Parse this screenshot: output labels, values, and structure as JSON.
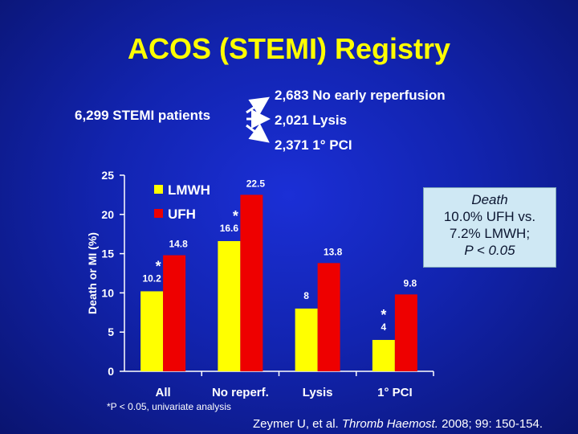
{
  "slide": {
    "title": "ACOS (STEMI) Registry",
    "patients": "6,299 STEMI patients",
    "outcomes": [
      "2,683 No early reperfusion",
      "2,021 Lysis",
      "2,371 1° PCI"
    ],
    "infobox": {
      "line1": "Death",
      "line2": "10.0% UFH vs.",
      "line3": "7.2% LMWH;",
      "line4": "P < 0.05"
    },
    "footnote": "*P < 0.05, univariate analysis",
    "citation_authors": "Zeymer U, et al. ",
    "citation_journal": "Thromb Haemost.",
    "citation_rest": " 2008; 99: 150-154."
  },
  "colors": {
    "background": "#1224b0",
    "title": "#ffff00",
    "lmwh": "#ffff00",
    "ufh": "#ee0000",
    "infobox": "#cfe8f4"
  },
  "chart_data": {
    "type": "bar",
    "categories": [
      "All",
      "No reperf.",
      "Lysis",
      "1° PCI"
    ],
    "series": [
      {
        "name": "LMWH",
        "values": [
          10.2,
          16.6,
          8,
          4
        ]
      },
      {
        "name": "UFH",
        "values": [
          14.8,
          22.5,
          13.8,
          9.8
        ]
      }
    ],
    "significant": [
      true,
      true,
      false,
      true
    ],
    "significance_marker": "*",
    "ylabel": "Death or MI (%)",
    "xlabel": "",
    "ylim": [
      0,
      25
    ],
    "yticks": [
      0,
      5,
      10,
      15,
      20,
      25
    ],
    "legend_position": "top-left"
  }
}
